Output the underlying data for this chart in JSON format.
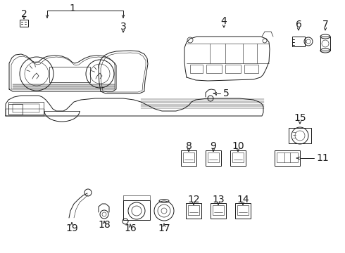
{
  "bg_color": "#ffffff",
  "line_color": "#1a1a1a",
  "lw": 0.7,
  "fs": 8.5
}
